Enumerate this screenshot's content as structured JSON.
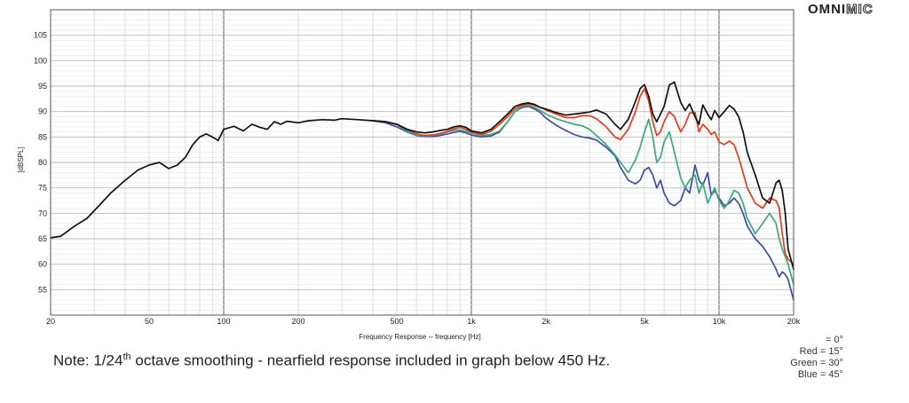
{
  "logo": {
    "part1": "OMNI",
    "part2": "MIC"
  },
  "note": {
    "prefix": "Note: 1/24",
    "sup": "th",
    "suffix": " octave smoothing - nearfield response included in graph below 450 Hz."
  },
  "legend": [
    "= 0°",
    "Red = 15°",
    "Green = 30°",
    "Blue = 45°"
  ],
  "chart_data": {
    "type": "line",
    "xlabel": "Frequency Response -- frequency [Hz]",
    "ylabel": "[dBSPL]",
    "x_scale": "log",
    "xlim": [
      20,
      20000
    ],
    "ylim": [
      50,
      110
    ],
    "x_ticks": [
      {
        "v": 20,
        "label": "20"
      },
      {
        "v": 50,
        "label": "50"
      },
      {
        "v": 100,
        "label": "100"
      },
      {
        "v": 200,
        "label": "200"
      },
      {
        "v": 500,
        "label": "500"
      },
      {
        "v": 1000,
        "label": "1k"
      },
      {
        "v": 2000,
        "label": "2k"
      },
      {
        "v": 5000,
        "label": "5k"
      },
      {
        "v": 10000,
        "label": "10k"
      },
      {
        "v": 20000,
        "label": "20k"
      }
    ],
    "y_ticks": [
      55,
      60,
      65,
      70,
      75,
      80,
      85,
      90,
      95,
      100,
      105
    ],
    "grid": true,
    "series": [
      {
        "color": "#111111",
        "x": [
          20,
          22,
          25,
          28,
          30,
          35,
          40,
          45,
          50,
          55,
          60,
          65,
          70,
          75,
          80,
          85,
          90,
          95,
          100,
          110,
          120,
          130,
          140,
          150,
          160,
          170,
          180,
          200,
          220,
          250,
          280,
          300,
          350,
          400,
          450,
          500,
          550,
          600,
          650,
          700,
          750,
          800,
          850,
          900,
          950,
          1000,
          1100,
          1200,
          1300,
          1400,
          1500,
          1600,
          1700,
          1800,
          1900,
          2000,
          2200,
          2400,
          2600,
          2800,
          3000,
          3200,
          3500,
          3800,
          4000,
          4300,
          4600,
          4800,
          5000,
          5200,
          5400,
          5600,
          5800,
          6000,
          6300,
          6600,
          7000,
          7300,
          7600,
          8000,
          8300,
          8600,
          9000,
          9300,
          9600,
          10000,
          10500,
          11000,
          11500,
          12000,
          12500,
          13000,
          14000,
          15000,
          16000,
          17000,
          17500,
          18000,
          18500,
          19000,
          20000
        ],
        "y": [
          65.2,
          65.5,
          67.5,
          69,
          70.5,
          74,
          76.5,
          78.5,
          79.5,
          80,
          78.8,
          79.5,
          81,
          83.5,
          85,
          85.6,
          85,
          84.3,
          86.5,
          87.1,
          86.2,
          87.5,
          86.9,
          86.5,
          88,
          87.5,
          88.1,
          87.8,
          88.2,
          88.4,
          88.3,
          88.6,
          88.4,
          88.2,
          88,
          87.5,
          86.5,
          86,
          85.8,
          86,
          86.3,
          86.5,
          87,
          87.2,
          86.9,
          86.2,
          85.8,
          86.5,
          88,
          89.5,
          91,
          91.5,
          91.7,
          91.4,
          90.8,
          90.5,
          89.8,
          89.3,
          89.5,
          89.7,
          89.9,
          90.3,
          89.5,
          87.5,
          86.5,
          88.5,
          92,
          94.5,
          95.3,
          93,
          89.5,
          88,
          89.5,
          91,
          95.2,
          95.8,
          91.8,
          90.2,
          91.5,
          89,
          87.5,
          91.3,
          89.5,
          88.4,
          90.2,
          88.8,
          90,
          91.2,
          90.5,
          89,
          86,
          82,
          77.5,
          73,
          72,
          76,
          76.5,
          74.5,
          70,
          63,
          59
        ]
      },
      {
        "color": "#e53b1c",
        "x": [
          400,
          450,
          500,
          550,
          600,
          650,
          700,
          750,
          800,
          850,
          900,
          950,
          1000,
          1100,
          1200,
          1300,
          1400,
          1500,
          1600,
          1700,
          1800,
          1900,
          2000,
          2200,
          2400,
          2600,
          2800,
          3000,
          3200,
          3500,
          3800,
          4000,
          4300,
          4600,
          4800,
          5000,
          5200,
          5400,
          5600,
          5800,
          6000,
          6300,
          6600,
          7000,
          7300,
          7600,
          8000,
          8300,
          8600,
          9000,
          9300,
          9600,
          10000,
          10500,
          11000,
          11500,
          12000,
          12500,
          13000,
          14000,
          15000,
          16000,
          17000,
          17500,
          18000,
          18500,
          19000,
          20000
        ],
        "y": [
          88.2,
          88,
          87.5,
          86.5,
          85.6,
          85.3,
          85.4,
          85.7,
          86.1,
          86.6,
          86.9,
          86.5,
          86,
          85.5,
          86.1,
          87.5,
          89,
          90.5,
          91.2,
          91.5,
          91.2,
          90.8,
          90.3,
          89.5,
          88.8,
          88.8,
          89.2,
          89.2,
          88.6,
          87,
          85,
          84.5,
          86.5,
          90,
          93,
          94.5,
          92,
          88,
          85.3,
          86,
          88,
          90,
          89,
          86,
          87.5,
          89.7,
          89.8,
          86,
          87.5,
          86.5,
          85.5,
          86,
          84,
          83.5,
          84.2,
          83.5,
          81,
          78,
          75,
          72,
          71,
          73,
          72.5,
          71,
          66,
          62,
          61,
          60
        ]
      },
      {
        "color": "#3aaa7a",
        "x": [
          400,
          450,
          500,
          550,
          600,
          650,
          700,
          750,
          800,
          850,
          900,
          950,
          1000,
          1100,
          1200,
          1300,
          1400,
          1500,
          1600,
          1700,
          1800,
          1900,
          2000,
          2200,
          2400,
          2600,
          2800,
          3000,
          3200,
          3500,
          3800,
          4000,
          4300,
          4600,
          4800,
          5000,
          5200,
          5400,
          5600,
          5800,
          6000,
          6300,
          6600,
          7000,
          7300,
          7600,
          8000,
          8300,
          8600,
          9000,
          9300,
          9600,
          10000,
          10500,
          11000,
          11500,
          12000,
          12500,
          13000,
          14000,
          15000,
          16000,
          17000,
          17500,
          18000,
          18500,
          19000,
          20000
        ],
        "y": [
          88.2,
          88,
          87.5,
          86.2,
          85.4,
          85.2,
          85.3,
          85.6,
          86,
          86.3,
          86.4,
          86.1,
          85.8,
          85.3,
          85.5,
          86.2,
          88,
          90,
          91,
          91.2,
          90.8,
          90.2,
          89.5,
          88.6,
          88,
          87.5,
          87.2,
          86.5,
          85.3,
          83.5,
          81.5,
          80,
          78,
          80.5,
          83,
          86,
          88.5,
          85,
          80,
          81,
          84,
          86,
          82,
          77,
          75,
          76.5,
          77.5,
          74,
          76,
          72,
          73.5,
          75,
          72.5,
          71,
          72.5,
          74.5,
          74,
          72,
          69,
          66,
          68,
          70,
          68,
          65,
          63,
          61.5,
          60,
          56
        ]
      },
      {
        "color": "#3d4ca8",
        "x": [
          400,
          450,
          500,
          550,
          600,
          650,
          700,
          750,
          800,
          850,
          900,
          950,
          1000,
          1100,
          1200,
          1300,
          1400,
          1500,
          1600,
          1700,
          1800,
          1900,
          2000,
          2200,
          2400,
          2600,
          2800,
          3000,
          3200,
          3500,
          3800,
          4000,
          4300,
          4600,
          4800,
          5000,
          5200,
          5400,
          5600,
          5800,
          6000,
          6300,
          6600,
          7000,
          7300,
          7600,
          8000,
          8300,
          8600,
          9000,
          9300,
          9600,
          10000,
          10500,
          11000,
          11500,
          12000,
          12500,
          13000,
          14000,
          15000,
          16000,
          17000,
          17500,
          18000,
          18500,
          19000,
          20000
        ],
        "y": [
          88.2,
          87.8,
          87,
          86,
          85.3,
          85.1,
          85.1,
          85.3,
          85.6,
          85.9,
          86.1,
          85.8,
          85.4,
          85,
          85.2,
          86,
          88,
          90,
          90.8,
          91,
          90.5,
          89.8,
          88.7,
          87.3,
          86.3,
          85.5,
          85,
          84.8,
          84.4,
          83,
          81.3,
          79,
          76.5,
          75.8,
          76.5,
          78.5,
          79,
          77.5,
          75,
          76.5,
          74,
          72,
          71.5,
          72.5,
          75,
          74,
          79.5,
          76.5,
          75.5,
          78,
          73.5,
          74.5,
          73,
          71.5,
          72,
          73,
          72,
          70,
          67.5,
          65,
          63.5,
          61.5,
          59,
          57.5,
          58.5,
          58,
          57,
          53
        ]
      }
    ]
  }
}
